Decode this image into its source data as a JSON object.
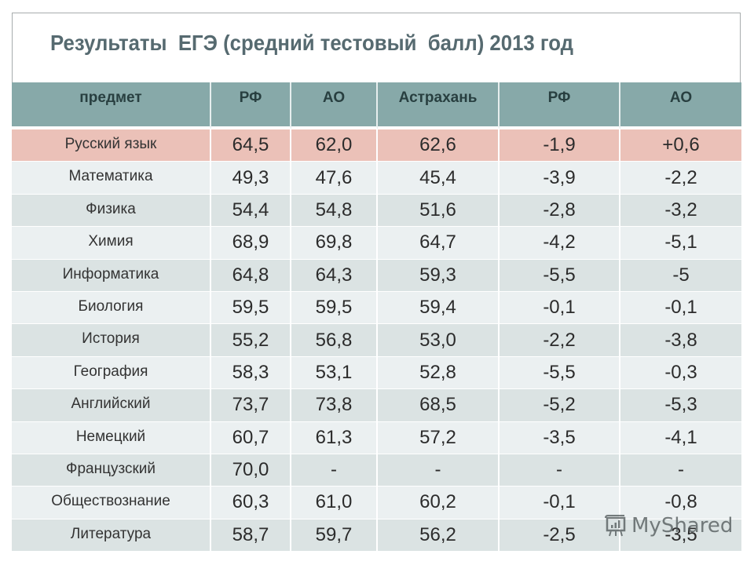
{
  "title": "Результаты  ЕГЭ (средний тестовый  балл) 2013 год",
  "table": {
    "headers": [
      "предмет",
      "РФ",
      "АО",
      "Астрахань",
      "РФ",
      "АО"
    ],
    "rows": [
      {
        "subject": "Русский язык",
        "values": [
          "64,5",
          "62,0",
          "62,6",
          "-1,9",
          "+0,6"
        ],
        "highlight": true
      },
      {
        "subject": "Математика",
        "values": [
          "49,3",
          "47,6",
          "45,4",
          "-3,9",
          "-2,2"
        ]
      },
      {
        "subject": "Физика",
        "values": [
          "54,4",
          "54,8",
          "51,6",
          "-2,8",
          "-3,2"
        ]
      },
      {
        "subject": "Химия",
        "values": [
          "68,9",
          "69,8",
          "64,7",
          "-4,2",
          "-5,1"
        ]
      },
      {
        "subject": "Информатика",
        "values": [
          "64,8",
          "64,3",
          "59,3",
          "-5,5",
          "-5"
        ]
      },
      {
        "subject": "Биология",
        "values": [
          "59,5",
          "59,5",
          "59,4",
          "-0,1",
          "-0,1"
        ]
      },
      {
        "subject": "История",
        "values": [
          "55,2",
          "56,8",
          "53,0",
          "-2,2",
          "-3,8"
        ]
      },
      {
        "subject": "География",
        "values": [
          "58,3",
          "53,1",
          "52,8",
          "-5,5",
          "-0,3"
        ]
      },
      {
        "subject": "Английский",
        "values": [
          "73,7",
          "73,8",
          "68,5",
          "-5,2",
          "-5,3"
        ]
      },
      {
        "subject": "Немецкий",
        "values": [
          "60,7",
          "61,3",
          "57,2",
          "-3,5",
          "-4,1"
        ]
      },
      {
        "subject": "Французский",
        "values": [
          "70,0",
          "-",
          "-",
          "-",
          "-"
        ]
      },
      {
        "subject": "Обществознание",
        "values": [
          "60,3",
          "61,0",
          "60,2",
          "-0,1",
          "-0,8"
        ]
      },
      {
        "subject": "Литература",
        "values": [
          "58,7",
          "59,7",
          "56,2",
          "-2,5",
          "-3,5"
        ]
      }
    ]
  },
  "watermark": {
    "text": "MyShared",
    "icon": "presentation-chart-icon"
  },
  "colors": {
    "header_bg": "#87a9a9",
    "highlight_row": "#ebc1b8",
    "row_odd": "#dbe3e3",
    "row_even": "#ebf0f1",
    "title_color": "#566a70"
  }
}
